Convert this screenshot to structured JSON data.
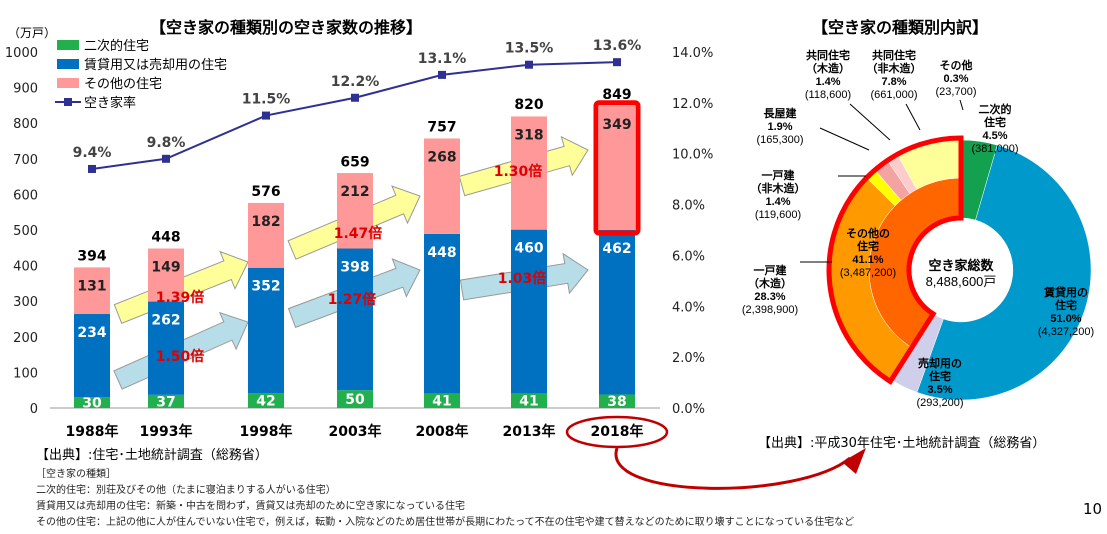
{
  "left_chart": {
    "title": "【空き家の種類別の空き家数の推移】",
    "unit": "（万戸）",
    "source": "【出典】:住宅･土地統計調査（総務省）"
  },
  "chart_data": [
    {
      "type": "bar",
      "stacked": true,
      "title": "【空き家の種類別の空き家数の推移】",
      "ylabel": "（万戸）",
      "ylim": [
        0,
        1000
      ],
      "yticks": [
        0,
        100,
        200,
        300,
        400,
        500,
        600,
        700,
        800,
        900,
        1000
      ],
      "y2lim": [
        0,
        14
      ],
      "y2ticks": [
        "0.0%",
        "2.0%",
        "4.0%",
        "6.0%",
        "8.0%",
        "10.0%",
        "12.0%",
        "14.0%"
      ],
      "categories": [
        "1988年",
        "1993年",
        "1998年",
        "2003年",
        "2008年",
        "2013年",
        "2018年"
      ],
      "legend_position": "top-left",
      "series": [
        {
          "name": "二次的住宅",
          "color": "#22b04e",
          "values": [
            30,
            37,
            42,
            50,
            41,
            41,
            38
          ]
        },
        {
          "name": "賃貸用又は売却用の住宅",
          "color": "#0070c0",
          "values": [
            234,
            262,
            352,
            398,
            448,
            460,
            462
          ]
        },
        {
          "name": "その他の住宅",
          "color": "#ff9999",
          "values": [
            131,
            149,
            182,
            212,
            268,
            318,
            349
          ]
        },
        {
          "name": "空き家率",
          "color": "#2e3192",
          "type": "line",
          "axis": "right",
          "values": [
            9.4,
            9.8,
            11.5,
            12.2,
            13.1,
            13.5,
            13.6
          ],
          "labels": [
            "9.4%",
            "9.8%",
            "11.5%",
            "12.2%",
            "13.1%",
            "13.5%",
            "13.6%"
          ]
        }
      ],
      "totals": [
        394,
        448,
        576,
        659,
        757,
        820,
        849
      ],
      "arrows": [
        {
          "label": "1.39倍",
          "kind": "other",
          "color": "#ffff99"
        },
        {
          "label": "1.47倍",
          "kind": "other",
          "color": "#ffff99"
        },
        {
          "label": "1.30倍",
          "kind": "other",
          "color": "#ffff99"
        },
        {
          "label": "1.50倍",
          "kind": "rental",
          "color": "#b7dde8"
        },
        {
          "label": "1.27倍",
          "kind": "rental",
          "color": "#b7dde8"
        },
        {
          "label": "1.03倍",
          "kind": "rental",
          "color": "#b7dde8"
        }
      ],
      "highlight_color": "#ff0000"
    },
    {
      "type": "pie",
      "donut": true,
      "title": "【空き家の種類別内訳】",
      "center_label": "空き家総数",
      "center_value": "8,488,600戸",
      "slices": [
        {
          "name": "二次的住宅",
          "pct": 4.5,
          "count": "(381,000)",
          "color": "#13a150"
        },
        {
          "name": "賃貸用の住宅",
          "pct": 51.0,
          "count": "(4,327,200)",
          "color": "#0099cc"
        },
        {
          "name": "売却用の住宅",
          "pct": 3.5,
          "count": "(293,200)",
          "color": "#cfcfeb"
        },
        {
          "name": "その他の住宅",
          "pct": 41.1,
          "count": "(3,487,200)",
          "color": "#ff6600"
        }
      ],
      "sub_slices": [
        {
          "name": "一戸建（木造）",
          "pct": 28.3,
          "count": "(2,398,900)",
          "color": "#ff9900"
        },
        {
          "name": "一戸建（非木造）",
          "pct": 1.4,
          "count": "(119,600)",
          "color": "#ffff00"
        },
        {
          "name": "長屋建",
          "pct": 1.9,
          "count": "(165,300)",
          "color": "#f4a3a3"
        },
        {
          "name": "共同住宅（木造）",
          "pct": 1.4,
          "count": "(118,600)",
          "color": "#ffcccc"
        },
        {
          "name": "共同住宅（非木造）",
          "pct": 7.8,
          "count": "(661,000)",
          "color": "#ffff99"
        },
        {
          "name": "その他",
          "pct": 0.3,
          "count": "(23,700)",
          "color": "#ffffcc"
        }
      ]
    }
  ],
  "right_chart": {
    "title": "【空き家の種類別内訳】",
    "source": "【出典】:平成30年住宅･土地統計調査（総務省）",
    "labels": {
      "secondary": [
        "二次的",
        "住宅",
        "4.5%",
        "(381,000)"
      ],
      "rental": [
        "賃貸用の",
        "住宅",
        "51.0%",
        "(4,327,200)"
      ],
      "sale": [
        "売却用の",
        "住宅",
        "3.5%",
        "(293,200)"
      ],
      "other": [
        "その他の",
        "住宅",
        "41.1%",
        "(3,487,200)"
      ],
      "detached_wood": [
        "一戸建",
        "（木造）",
        "28.3%",
        "(2,398,900)"
      ],
      "detached_nonwood": [
        "一戸建",
        "（非木造）",
        "1.4%",
        "(119,600)"
      ],
      "row": [
        "長屋建",
        "1.9%",
        "(165,300)"
      ],
      "apt_wood": [
        "共同住宅",
        "（木造）",
        "1.4%",
        "(118,600)"
      ],
      "apt_nonwood": [
        "共同住宅",
        "（非木造）",
        "7.8%",
        "(661,000)"
      ],
      "misc": [
        "その他",
        "0.3%",
        "(23,700)"
      ]
    }
  },
  "notes": {
    "heading": "［空き家の種類］",
    "lines": [
      "二次的住宅：別荘及びその他（たまに寝泊まりする人がいる住宅）",
      "賃貸用又は売却用の住宅：新築・中古を問わず，賃貸又は売却のために空き家になっている住宅",
      "その他の住宅：上記の他に人が住んでいない住宅で，例えば，転勤・入院などのため居住世帯が長期にわたって不在の住宅や建て替えなどのために取り壊すことになっている住宅など"
    ]
  },
  "page_number": "10"
}
